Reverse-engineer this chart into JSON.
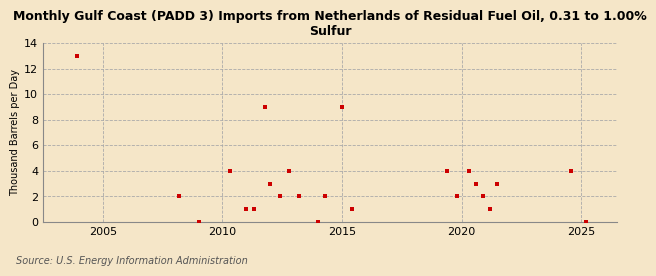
{
  "title": "Monthly Gulf Coast (PADD 3) Imports from Netherlands of Residual Fuel Oil, 0.31 to 1.00%\nSulfur",
  "ylabel": "Thousand Barrels per Day",
  "source": "Source: U.S. Energy Information Administration",
  "xlim": [
    2002.5,
    2026.5
  ],
  "ylim": [
    0,
    14
  ],
  "yticks": [
    0,
    2,
    4,
    6,
    8,
    10,
    12,
    14
  ],
  "xticks": [
    2005,
    2010,
    2015,
    2020,
    2025
  ],
  "background_color": "#f5e6c8",
  "plot_bg_color": "#f5e6c8",
  "marker_color": "#cc0000",
  "marker": "s",
  "marker_size": 3.5,
  "grid_color": "#aaaaaa",
  "grid_color_vert": "#aaaaaa",
  "data_points": [
    [
      2003.9,
      13
    ],
    [
      2008.2,
      2
    ],
    [
      2009.0,
      0
    ],
    [
      2010.3,
      4
    ],
    [
      2011.0,
      1
    ],
    [
      2011.3,
      1
    ],
    [
      2011.8,
      9
    ],
    [
      2012.0,
      3
    ],
    [
      2012.4,
      2
    ],
    [
      2012.8,
      4
    ],
    [
      2013.2,
      2
    ],
    [
      2014.0,
      0
    ],
    [
      2014.3,
      2
    ],
    [
      2015.0,
      9
    ],
    [
      2015.4,
      1
    ],
    [
      2019.4,
      4
    ],
    [
      2019.8,
      2
    ],
    [
      2020.3,
      4
    ],
    [
      2020.6,
      3
    ],
    [
      2020.9,
      2
    ],
    [
      2021.2,
      1
    ],
    [
      2021.5,
      3
    ],
    [
      2024.6,
      4
    ],
    [
      2025.2,
      0
    ]
  ]
}
